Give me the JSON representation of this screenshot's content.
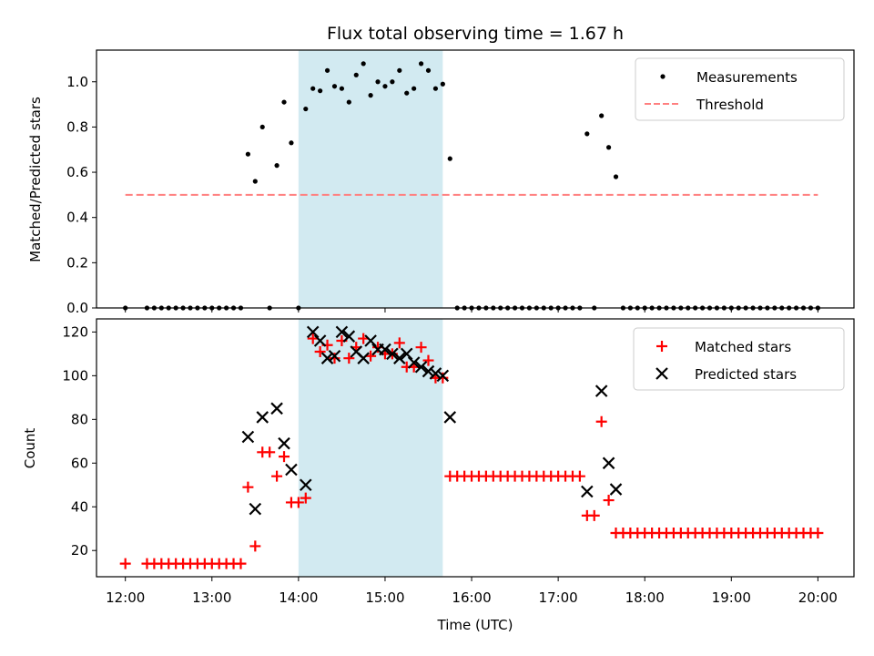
{
  "chart_data": [
    {
      "type": "scatter",
      "title": "Flux total observing time = 1.67 h",
      "ylabel": "Matched/Predicted stars",
      "xlabel": "",
      "xlim": [
        "11:40",
        "20:25"
      ],
      "ylim": [
        0,
        1.14
      ],
      "yticks": [
        0.0,
        0.2,
        0.4,
        0.6,
        0.8,
        1.0
      ],
      "ytick_labels": [
        "0.0",
        "0.2",
        "0.4",
        "0.6",
        "0.8",
        "1.0"
      ],
      "shaded_band": {
        "x0": "14:00",
        "x1": "15:40",
        "color": "#add8e6"
      },
      "legend": {
        "placement": "top-right",
        "entries": [
          "Measurements",
          "Threshold"
        ]
      },
      "series": [
        {
          "name": "Measurements",
          "color": "#000000",
          "marker": "dot",
          "points": [
            [
              "12:00",
              0
            ],
            [
              "12:15",
              0
            ],
            [
              "12:20",
              0
            ],
            [
              "12:25",
              0
            ],
            [
              "12:30",
              0
            ],
            [
              "12:35",
              0
            ],
            [
              "12:40",
              0
            ],
            [
              "12:45",
              0
            ],
            [
              "12:50",
              0
            ],
            [
              "12:55",
              0
            ],
            [
              "13:00",
              0
            ],
            [
              "13:05",
              0
            ],
            [
              "13:10",
              0
            ],
            [
              "13:15",
              0
            ],
            [
              "13:20",
              0
            ],
            [
              "13:25",
              0.68
            ],
            [
              "13:30",
              0.56
            ],
            [
              "13:35",
              0.8
            ],
            [
              "13:40",
              0
            ],
            [
              "13:45",
              0.63
            ],
            [
              "13:50",
              0.91
            ],
            [
              "13:55",
              0.73
            ],
            [
              "14:00",
              0
            ],
            [
              "14:05",
              0.88
            ],
            [
              "14:10",
              0.97
            ],
            [
              "14:15",
              0.96
            ],
            [
              "14:20",
              1.05
            ],
            [
              "14:25",
              0.98
            ],
            [
              "14:30",
              0.97
            ],
            [
              "14:35",
              0.91
            ],
            [
              "14:40",
              1.03
            ],
            [
              "14:45",
              1.08
            ],
            [
              "14:50",
              0.94
            ],
            [
              "14:55",
              1.0
            ],
            [
              "15:00",
              0.98
            ],
            [
              "15:05",
              1.0
            ],
            [
              "15:10",
              1.05
            ],
            [
              "15:15",
              0.95
            ],
            [
              "15:20",
              0.97
            ],
            [
              "15:25",
              1.08
            ],
            [
              "15:30",
              1.05
            ],
            [
              "15:35",
              0.97
            ],
            [
              "15:40",
              0.99
            ],
            [
              "15:45",
              0.66
            ],
            [
              "15:50",
              0
            ],
            [
              "15:55",
              0
            ],
            [
              "16:00",
              0
            ],
            [
              "16:05",
              0
            ],
            [
              "16:10",
              0
            ],
            [
              "16:15",
              0
            ],
            [
              "16:20",
              0
            ],
            [
              "16:25",
              0
            ],
            [
              "16:30",
              0
            ],
            [
              "16:35",
              0
            ],
            [
              "16:40",
              0
            ],
            [
              "16:45",
              0
            ],
            [
              "16:50",
              0
            ],
            [
              "16:55",
              0
            ],
            [
              "17:00",
              0
            ],
            [
              "17:05",
              0
            ],
            [
              "17:10",
              0
            ],
            [
              "17:15",
              0
            ],
            [
              "17:20",
              0.77
            ],
            [
              "17:25",
              0
            ],
            [
              "17:30",
              0.85
            ],
            [
              "17:35",
              0.71
            ],
            [
              "17:40",
              0.58
            ],
            [
              "17:45",
              0
            ],
            [
              "17:50",
              0
            ],
            [
              "17:55",
              0
            ],
            [
              "18:00",
              0
            ],
            [
              "18:05",
              0
            ],
            [
              "18:10",
              0
            ],
            [
              "18:15",
              0
            ],
            [
              "18:20",
              0
            ],
            [
              "18:25",
              0
            ],
            [
              "18:30",
              0
            ],
            [
              "18:35",
              0
            ],
            [
              "18:40",
              0
            ],
            [
              "18:45",
              0
            ],
            [
              "18:50",
              0
            ],
            [
              "18:55",
              0
            ],
            [
              "19:00",
              0
            ],
            [
              "19:05",
              0
            ],
            [
              "19:10",
              0
            ],
            [
              "19:15",
              0
            ],
            [
              "19:20",
              0
            ],
            [
              "19:25",
              0
            ],
            [
              "19:30",
              0
            ],
            [
              "19:35",
              0
            ],
            [
              "19:40",
              0
            ],
            [
              "19:45",
              0
            ],
            [
              "19:50",
              0
            ],
            [
              "19:55",
              0
            ],
            [
              "20:00",
              0
            ]
          ]
        },
        {
          "name": "Threshold",
          "color": "#ff7f7f",
          "style": "dashed-line",
          "points": [
            [
              "12:00",
              0.5
            ],
            [
              "20:00",
              0.5
            ]
          ]
        }
      ]
    },
    {
      "type": "scatter",
      "title": "",
      "xlabel": "Time (UTC)",
      "ylabel": "Count",
      "xlim": [
        "11:40",
        "20:25"
      ],
      "ylim": [
        8,
        126
      ],
      "xticks": [
        "12:00",
        "13:00",
        "14:00",
        "15:00",
        "16:00",
        "17:00",
        "18:00",
        "19:00",
        "20:00"
      ],
      "yticks": [
        20,
        40,
        60,
        80,
        100,
        120
      ],
      "ytick_labels": [
        "20",
        "40",
        "60",
        "80",
        "100",
        "120"
      ],
      "shaded_band": {
        "x0": "14:00",
        "x1": "15:40",
        "color": "#add8e6"
      },
      "legend": {
        "placement": "top-right",
        "entries": [
          "Matched stars",
          "Predicted stars"
        ]
      },
      "series": [
        {
          "name": "Matched stars",
          "color": "#ff0000",
          "marker": "plus",
          "points": [
            [
              "12:00",
              14
            ],
            [
              "12:15",
              14
            ],
            [
              "12:20",
              14
            ],
            [
              "12:25",
              14
            ],
            [
              "12:30",
              14
            ],
            [
              "12:35",
              14
            ],
            [
              "12:40",
              14
            ],
            [
              "12:45",
              14
            ],
            [
              "12:50",
              14
            ],
            [
              "12:55",
              14
            ],
            [
              "13:00",
              14
            ],
            [
              "13:05",
              14
            ],
            [
              "13:10",
              14
            ],
            [
              "13:15",
              14
            ],
            [
              "13:20",
              14
            ],
            [
              "13:25",
              49
            ],
            [
              "13:30",
              22
            ],
            [
              "13:35",
              65
            ],
            [
              "13:40",
              65
            ],
            [
              "13:45",
              54
            ],
            [
              "13:50",
              63
            ],
            [
              "13:55",
              42
            ],
            [
              "14:00",
              42
            ],
            [
              "14:05",
              44
            ],
            [
              "14:10",
              117
            ],
            [
              "14:15",
              111
            ],
            [
              "14:20",
              114
            ],
            [
              "14:25",
              108
            ],
            [
              "14:30",
              116
            ],
            [
              "14:35",
              108
            ],
            [
              "14:40",
              113
            ],
            [
              "14:45",
              117
            ],
            [
              "14:50",
              109
            ],
            [
              "14:55",
              113
            ],
            [
              "15:00",
              110
            ],
            [
              "15:05",
              110
            ],
            [
              "15:10",
              115
            ],
            [
              "15:15",
              104
            ],
            [
              "15:20",
              104
            ],
            [
              "15:25",
              113
            ],
            [
              "15:30",
              107
            ],
            [
              "15:35",
              99
            ],
            [
              "15:40",
              99
            ],
            [
              "15:45",
              54
            ],
            [
              "15:50",
              54
            ],
            [
              "15:55",
              54
            ],
            [
              "16:00",
              54
            ],
            [
              "16:05",
              54
            ],
            [
              "16:10",
              54
            ],
            [
              "16:15",
              54
            ],
            [
              "16:20",
              54
            ],
            [
              "16:25",
              54
            ],
            [
              "16:30",
              54
            ],
            [
              "16:35",
              54
            ],
            [
              "16:40",
              54
            ],
            [
              "16:45",
              54
            ],
            [
              "16:50",
              54
            ],
            [
              "16:55",
              54
            ],
            [
              "17:00",
              54
            ],
            [
              "17:05",
              54
            ],
            [
              "17:10",
              54
            ],
            [
              "17:15",
              54
            ],
            [
              "17:20",
              36
            ],
            [
              "17:25",
              36
            ],
            [
              "17:30",
              79
            ],
            [
              "17:35",
              43
            ],
            [
              "17:40",
              28
            ],
            [
              "17:45",
              28
            ],
            [
              "17:50",
              28
            ],
            [
              "17:55",
              28
            ],
            [
              "18:00",
              28
            ],
            [
              "18:05",
              28
            ],
            [
              "18:10",
              28
            ],
            [
              "18:15",
              28
            ],
            [
              "18:20",
              28
            ],
            [
              "18:25",
              28
            ],
            [
              "18:30",
              28
            ],
            [
              "18:35",
              28
            ],
            [
              "18:40",
              28
            ],
            [
              "18:45",
              28
            ],
            [
              "18:50",
              28
            ],
            [
              "18:55",
              28
            ],
            [
              "19:00",
              28
            ],
            [
              "19:05",
              28
            ],
            [
              "19:10",
              28
            ],
            [
              "19:15",
              28
            ],
            [
              "19:20",
              28
            ],
            [
              "19:25",
              28
            ],
            [
              "19:30",
              28
            ],
            [
              "19:35",
              28
            ],
            [
              "19:40",
              28
            ],
            [
              "19:45",
              28
            ],
            [
              "19:50",
              28
            ],
            [
              "19:55",
              28
            ],
            [
              "20:00",
              28
            ]
          ]
        },
        {
          "name": "Predicted stars",
          "color": "#000000",
          "marker": "x",
          "points": [
            [
              "13:25",
              72
            ],
            [
              "13:30",
              39
            ],
            [
              "13:35",
              81
            ],
            [
              "13:45",
              85
            ],
            [
              "13:50",
              69
            ],
            [
              "13:55",
              57
            ],
            [
              "14:05",
              50
            ],
            [
              "14:10",
              120
            ],
            [
              "14:15",
              116
            ],
            [
              "14:20",
              108
            ],
            [
              "14:25",
              109
            ],
            [
              "14:30",
              120
            ],
            [
              "14:35",
              118
            ],
            [
              "14:40",
              111
            ],
            [
              "14:45",
              108
            ],
            [
              "14:50",
              116
            ],
            [
              "14:55",
              112
            ],
            [
              "15:00",
              112
            ],
            [
              "15:05",
              110
            ],
            [
              "15:10",
              108
            ],
            [
              "15:15",
              110
            ],
            [
              "15:20",
              106
            ],
            [
              "15:25",
              104
            ],
            [
              "15:30",
              102
            ],
            [
              "15:35",
              101
            ],
            [
              "15:40",
              100
            ],
            [
              "15:45",
              81
            ],
            [
              "17:20",
              47
            ],
            [
              "17:30",
              93
            ],
            [
              "17:35",
              60
            ],
            [
              "17:40",
              48
            ]
          ]
        }
      ]
    }
  ]
}
